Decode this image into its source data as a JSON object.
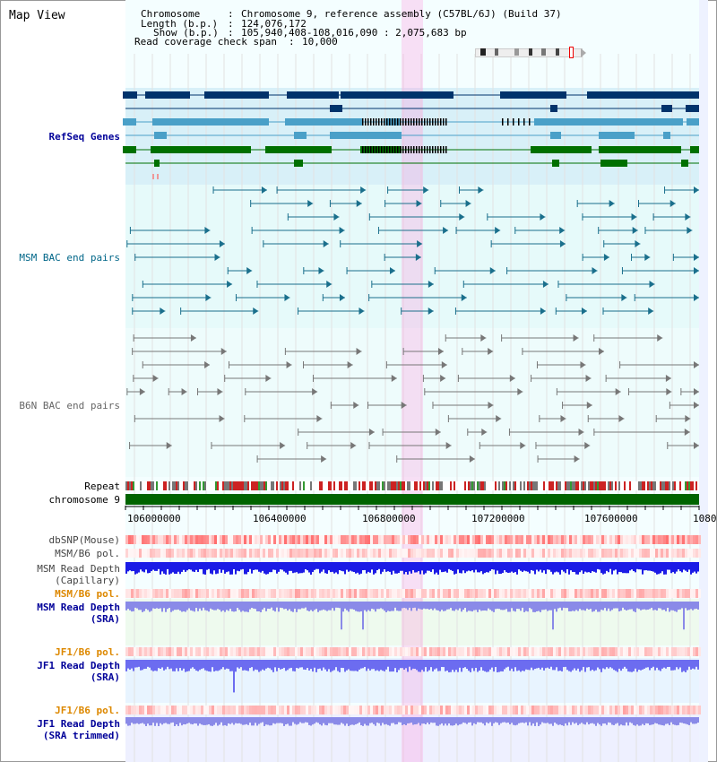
{
  "app": {
    "title": "Map View"
  },
  "header": {
    "chromosome_label": "Chromosome",
    "chromosome_value": "Chromosome 9, reference assembly (C57BL/6J) (Build 37)",
    "length_label": "Length (b.p.)",
    "length_value": "124,076,172",
    "show_label": "Show (b.p.)",
    "show_value": "105,940,408-108,016,090 : 2,075,683 bp",
    "coverage_label": "Read coverage check span",
    "coverage_value": "10,000"
  },
  "tracks": {
    "refseq": "RefSeq Genes",
    "msm_bac": "MSM BAC end pairs",
    "b6n_bac": "B6N BAC end pairs",
    "repeat": "Repeat",
    "chromosome": "chromosome 9",
    "dbsnp": "dbSNP(Mouse)",
    "msm_b6_pol_1": "MSM/B6 pol.",
    "msm_read_depth_cap_1": "MSM Read Depth",
    "msm_read_depth_cap_2": "(Capillary)",
    "msm_b6_pol_2": "MSM/B6 pol.",
    "msm_read_depth_sra_1": "MSM Read Depth",
    "msm_read_depth_sra_2": "(SRA)",
    "jf1_b6_pol_1": "JF1/B6 pol.",
    "jf1_read_depth_sra_1": "JF1 Read Depth",
    "jf1_read_depth_sra_2": "(SRA)",
    "jf1_b6_pol_2": "JF1/B6 pol.",
    "jf1_read_depth_trim_1": "JF1 Read Depth",
    "jf1_read_depth_trim_2": "(SRA trimmed)"
  },
  "axis": {
    "ticks": [
      "106000000",
      "106400000",
      "106800000",
      "107200000",
      "107600000",
      "1080"
    ]
  },
  "colors": {
    "refseq_label": "#000099",
    "msm_label": "#006688",
    "b6n_label": "#666666",
    "pol_orange": "#dd8800",
    "sra_blue": "#000099",
    "highlight": "#ff99dd"
  }
}
